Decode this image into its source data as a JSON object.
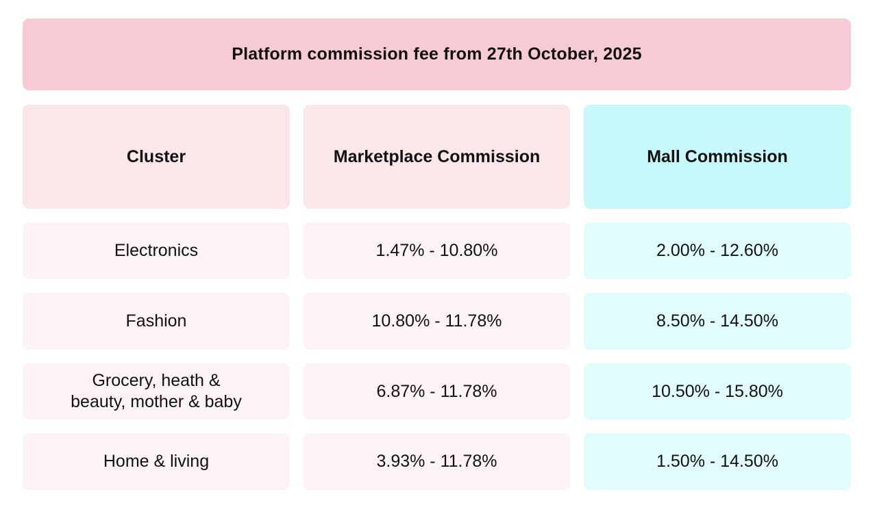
{
  "banner": {
    "title": "Platform commission fee from 27th October, 2025"
  },
  "table": {
    "headers": [
      "Cluster",
      "Marketplace Commission",
      "Mall Commission"
    ],
    "rows": [
      [
        "Electronics",
        "1.47% - 10.80%",
        "2.00% - 12.60%"
      ],
      [
        "Fashion",
        "10.80% - 11.78%",
        "8.50% - 14.50%"
      ],
      [
        "Grocery, heath &\nbeauty, mother & baby",
        "6.87% - 11.78%",
        "10.50% - 15.80%"
      ],
      [
        "Home & living",
        "3.93% - 11.78%",
        "1.50% - 14.50%"
      ]
    ]
  },
  "colors": {
    "banner": "#f7cbd5",
    "header_pink": "#fbe7ea",
    "header_cyan": "#c8f9fa",
    "cell_pink": "#fdf3f4",
    "cell_cyan": "#e0fcfc"
  }
}
